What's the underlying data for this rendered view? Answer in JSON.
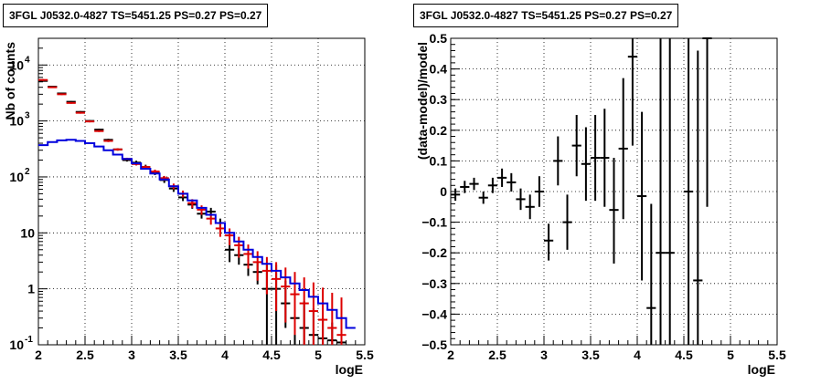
{
  "chart_data": [
    {
      "type": "line",
      "title": "3FGL J0532.0-4827 TS=5451.25 PS=0.27 PS=0.27",
      "xlabel": "logE",
      "ylabel": "Nb of counts",
      "xlim": [
        2,
        5.5
      ],
      "ylim": [
        0.1,
        30000
      ],
      "ylog": true,
      "grid": true,
      "xticks": [
        "2",
        "2.5",
        "3",
        "3.5",
        "4",
        "4.5",
        "5",
        "5.5"
      ],
      "yticks": [
        {
          "v": 0.1,
          "label": "10",
          "exp": "-1"
        },
        {
          "v": 1,
          "label": "1",
          "exp": ""
        },
        {
          "v": 10,
          "label": "10",
          "exp": ""
        },
        {
          "v": 100,
          "label": "10",
          "exp": "2"
        },
        {
          "v": 1000,
          "label": "10",
          "exp": "3"
        },
        {
          "v": 10000,
          "label": "10",
          "exp": "4"
        }
      ],
      "series": [
        {
          "kind": "points",
          "color": "#000000",
          "x": [
            2.05,
            2.15,
            2.25,
            2.35,
            2.45,
            2.55,
            2.65,
            2.75,
            2.85,
            2.95,
            3.05,
            3.15,
            3.25,
            3.35,
            3.45,
            3.55,
            3.65,
            3.75,
            3.85,
            3.95,
            4.05,
            4.15,
            4.25,
            4.35,
            4.45,
            4.55,
            4.65,
            4.75,
            4.85,
            4.95,
            5.05,
            5.15,
            5.25
          ],
          "y": [
            5200,
            4100,
            3100,
            2200,
            1450,
            1000,
            700,
            460,
            310,
            200,
            180,
            150,
            120,
            88,
            62,
            43,
            32,
            22,
            24,
            15,
            5,
            4,
            2.7,
            2,
            1,
            1,
            0.55,
            0.3,
            0.2,
            0.15,
            0.13,
            0.12,
            0.11
          ],
          "ylo": [
            5050,
            3980,
            3010,
            2130,
            1400,
            965,
            675,
            440,
            295,
            188,
            165,
            135,
            108,
            78,
            54,
            37,
            27,
            18,
            20,
            12,
            3,
            2.7,
            1.7,
            1.2,
            0.1,
            0.1,
            0.2,
            0.1,
            0.1,
            0.1,
            0.1,
            0.1,
            0.1
          ],
          "yhi": [
            5350,
            4220,
            3190,
            2270,
            1500,
            1035,
            725,
            480,
            325,
            212,
            195,
            165,
            132,
            98,
            70,
            49,
            37,
            26,
            28,
            18,
            7.5,
            5.5,
            3.9,
            2.9,
            2.7,
            2.7,
            1.4,
            0.95,
            0.6,
            0.45,
            0.3,
            0.25,
            0.2
          ]
        },
        {
          "kind": "points",
          "color": "#dd0000",
          "x": [
            2.05,
            2.15,
            2.25,
            2.35,
            2.45,
            2.55,
            2.65,
            2.75,
            2.85,
            2.95,
            3.05,
            3.15,
            3.25,
            3.35,
            3.45,
            3.55,
            3.65,
            3.75,
            3.85,
            3.95,
            4.05,
            4.15,
            4.25,
            4.35,
            4.45,
            4.55,
            4.65,
            4.75,
            4.85,
            4.95,
            5.05,
            5.15,
            5.25
          ],
          "y": [
            5400,
            4000,
            3000,
            2100,
            1400,
            980,
            660,
            440,
            310,
            210,
            170,
            150,
            125,
            95,
            68,
            50,
            34,
            26,
            18,
            12,
            9,
            6,
            4.2,
            3,
            2.1,
            1.5,
            1.1,
            0.8,
            0.55,
            0.4,
            0.28,
            0.2,
            0.15
          ],
          "ylo": [
            5200,
            3880,
            2900,
            2030,
            1350,
            945,
            635,
            420,
            295,
            200,
            160,
            140,
            115,
            86,
            60,
            43,
            28,
            21,
            14,
            8.5,
            6,
            3.6,
            2.3,
            1.4,
            0.8,
            0.4,
            0.25,
            0.15,
            0.1,
            0.1,
            0.1,
            0.1,
            0.1
          ],
          "yhi": [
            5600,
            4120,
            3100,
            2170,
            1450,
            1015,
            685,
            460,
            325,
            220,
            180,
            160,
            135,
            104,
            76,
            57,
            40,
            31,
            22,
            15.5,
            12,
            8.5,
            6.2,
            4.7,
            3.7,
            3,
            2.4,
            2,
            1.6,
            1.3,
            1.05,
            0.85,
            0.7
          ]
        },
        {
          "kind": "step",
          "color": "#0000dd",
          "edges": [
            2.0,
            2.1,
            2.2,
            2.3,
            2.4,
            2.5,
            2.6,
            2.7,
            2.8,
            2.9,
            3.0,
            3.1,
            3.2,
            3.3,
            3.4,
            3.5,
            3.6,
            3.7,
            3.8,
            3.9,
            4.0,
            4.1,
            4.2,
            4.3,
            4.4,
            4.5,
            4.6,
            4.7,
            4.8,
            4.9,
            5.0,
            5.1,
            5.2,
            5.3,
            5.4
          ],
          "values": [
            370,
            420,
            450,
            460,
            440,
            400,
            350,
            300,
            250,
            210,
            175,
            140,
            115,
            90,
            68,
            50,
            38,
            28,
            21,
            15,
            10,
            7,
            5,
            3.7,
            2.8,
            2.1,
            1.6,
            1.25,
            0.95,
            0.72,
            0.55,
            0.42,
            0.3,
            0.2
          ]
        }
      ]
    },
    {
      "type": "scatter",
      "title": "3FGL J0532.0-4827 TS=5451.25 PS=0.27 PS=0.27",
      "xlabel": "logE",
      "ylabel": "(data-model)/model",
      "xlim": [
        2,
        5.5
      ],
      "ylim": [
        -0.5,
        0.5
      ],
      "grid": true,
      "xticks": [
        "2",
        "2.5",
        "3",
        "3.5",
        "4",
        "4.5",
        "5",
        "5.5"
      ],
      "yticks": [
        "-0.5",
        "-0.4",
        "-0.3",
        "-0.2",
        "-0.1",
        "0",
        "0.1",
        "0.2",
        "0.3",
        "0.4",
        "0.5"
      ],
      "series": [
        {
          "kind": "points",
          "color": "#000000",
          "x": [
            2.05,
            2.15,
            2.25,
            2.35,
            2.45,
            2.55,
            2.65,
            2.75,
            2.85,
            2.95,
            3.05,
            3.15,
            3.25,
            3.35,
            3.45,
            3.55,
            3.65,
            3.75,
            3.85,
            3.95,
            4.05,
            4.15,
            4.25,
            4.35,
            4.55,
            4.65,
            4.75
          ],
          "y": [
            -0.01,
            0.015,
            0.025,
            -0.02,
            0.02,
            0.045,
            0.03,
            -0.025,
            -0.05,
            0.0,
            -0.16,
            0.1,
            -0.1,
            0.15,
            0.09,
            0.11,
            0.11,
            -0.06,
            0.14,
            0.44,
            -0.015,
            -0.38,
            -0.2,
            -0.2,
            0.0,
            -0.29,
            0.5
          ],
          "ylo": [
            -0.03,
            -0.005,
            0.005,
            -0.04,
            -0.005,
            0.015,
            0.0,
            -0.06,
            -0.09,
            -0.05,
            -0.225,
            0.02,
            -0.19,
            0.05,
            -0.03,
            -0.03,
            -0.05,
            -0.235,
            -0.09,
            0.15,
            -0.29,
            -0.5,
            -0.5,
            -0.5,
            -0.5,
            -0.5,
            -0.05
          ],
          "yhi": [
            0.01,
            0.035,
            0.045,
            0.0,
            0.045,
            0.075,
            0.06,
            0.01,
            -0.01,
            0.05,
            -0.105,
            0.18,
            -0.01,
            0.25,
            0.21,
            0.25,
            0.27,
            0.11,
            0.37,
            0.5,
            0.26,
            -0.04,
            0.5,
            0.5,
            0.5,
            0.46,
            0.5
          ]
        }
      ]
    }
  ]
}
